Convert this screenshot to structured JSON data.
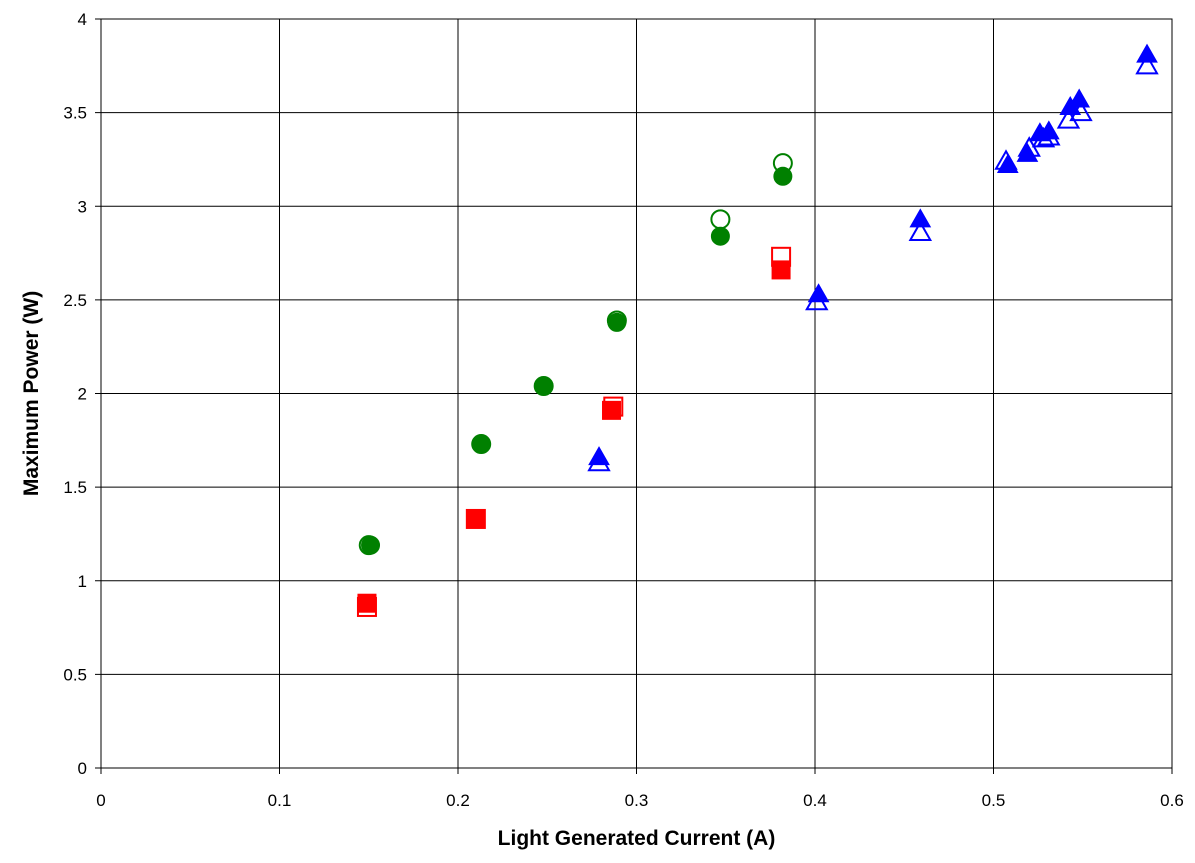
{
  "chart_data": {
    "type": "scatter",
    "title": "",
    "xlabel": "Light Generated Current (A)",
    "ylabel": "Maximum Power (W)",
    "xlim": [
      0,
      0.6
    ],
    "ylim": [
      0,
      4
    ],
    "x_ticks": [
      0,
      0.1,
      0.2,
      0.3,
      0.4,
      0.5,
      0.6
    ],
    "x_tick_labels": [
      "0",
      "0.1",
      "0.2",
      "0.3",
      "0.4",
      "0.5",
      "0.6"
    ],
    "y_ticks": [
      0,
      0.5,
      1,
      1.5,
      2,
      2.5,
      3,
      3.5,
      4
    ],
    "y_tick_labels": [
      "0",
      "0.5",
      "1",
      "1.5",
      "2",
      "2.5",
      "3",
      "3.5",
      "4"
    ],
    "grid": true,
    "legend": "none",
    "series": [
      {
        "marker": "circle",
        "filled": true,
        "color": "#008000",
        "points": [
          [
            0.151,
            1.19
          ],
          [
            0.213,
            1.73
          ],
          [
            0.248,
            2.04
          ],
          [
            0.289,
            2.38
          ],
          [
            0.347,
            2.84
          ],
          [
            0.382,
            3.16
          ]
        ]
      },
      {
        "marker": "circle",
        "filled": false,
        "color": "#008000",
        "points": [
          [
            0.15,
            1.19
          ],
          [
            0.213,
            1.73
          ],
          [
            0.248,
            2.04
          ],
          [
            0.289,
            2.39
          ],
          [
            0.347,
            2.93
          ],
          [
            0.382,
            3.23
          ]
        ]
      },
      {
        "marker": "square",
        "filled": true,
        "color": "#ff0000",
        "points": [
          [
            0.149,
            0.88
          ],
          [
            0.21,
            1.33
          ],
          [
            0.286,
            1.91
          ],
          [
            0.381,
            2.66
          ]
        ]
      },
      {
        "marker": "square",
        "filled": false,
        "color": "#ff0000",
        "points": [
          [
            0.149,
            0.86
          ],
          [
            0.21,
            1.33
          ],
          [
            0.287,
            1.93
          ],
          [
            0.381,
            2.73
          ]
        ]
      },
      {
        "marker": "triangle",
        "filled": true,
        "color": "#0000ff",
        "points": [
          [
            0.279,
            1.66
          ],
          [
            0.402,
            2.53
          ],
          [
            0.459,
            2.93
          ],
          [
            0.508,
            3.22
          ],
          [
            0.519,
            3.28
          ],
          [
            0.526,
            3.39
          ],
          [
            0.531,
            3.4
          ],
          [
            0.543,
            3.53
          ],
          [
            0.548,
            3.57
          ],
          [
            0.586,
            3.81
          ]
        ]
      },
      {
        "marker": "triangle",
        "filled": false,
        "color": "#0000ff",
        "points": [
          [
            0.279,
            1.63
          ],
          [
            0.401,
            2.49
          ],
          [
            0.459,
            2.86
          ],
          [
            0.507,
            3.24
          ],
          [
            0.52,
            3.31
          ],
          [
            0.528,
            3.36
          ],
          [
            0.531,
            3.37
          ],
          [
            0.542,
            3.46
          ],
          [
            0.549,
            3.5
          ],
          [
            0.586,
            3.75
          ]
        ]
      }
    ]
  }
}
